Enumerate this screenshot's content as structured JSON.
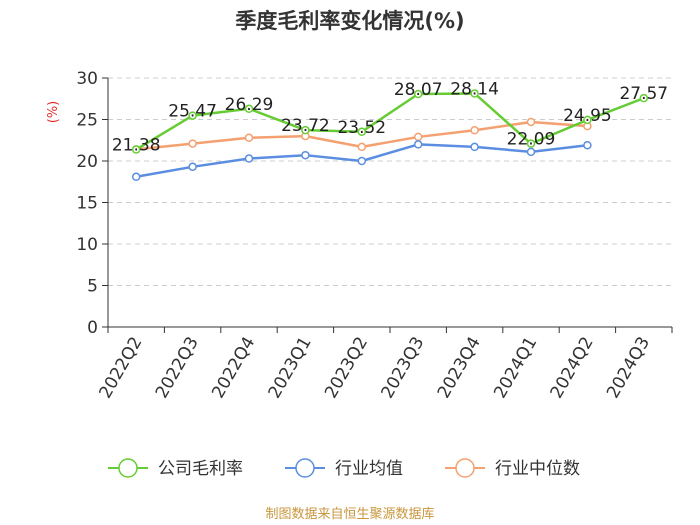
{
  "chart_data": {
    "type": "line",
    "title": "季度毛利率变化情况(%)",
    "ylabel": "(%)",
    "xlabel": "",
    "ylim": [
      0,
      30
    ],
    "yticks": [
      0,
      5,
      10,
      15,
      20,
      25,
      30
    ],
    "grid": true,
    "legend_position": "bottom",
    "categories": [
      "2022Q2",
      "2022Q3",
      "2022Q4",
      "2023Q1",
      "2023Q2",
      "2023Q3",
      "2023Q4",
      "2024Q1",
      "2024Q2",
      "2024Q3"
    ],
    "series": [
      {
        "name": "公司毛利率",
        "color": "#66cc33",
        "values": [
          21.38,
          25.47,
          26.29,
          23.72,
          23.52,
          28.07,
          28.14,
          22.09,
          24.95,
          27.57
        ],
        "data_labels": [
          "21.38",
          "25.47",
          "26.29",
          "23.72",
          "23.52",
          "28.07",
          "28.14",
          "22.09",
          "24.95",
          "27.57"
        ]
      },
      {
        "name": "行业均值",
        "color": "#5b8ee0",
        "values": [
          18.1,
          19.3,
          20.3,
          20.7,
          20.0,
          22.0,
          21.7,
          21.1,
          21.9,
          null
        ]
      },
      {
        "name": "行业中位数",
        "color": "#f4a070",
        "values": [
          21.4,
          22.1,
          22.8,
          23.0,
          21.7,
          22.9,
          23.7,
          24.7,
          24.2,
          null
        ]
      }
    ]
  },
  "source": "制图数据来自恒生聚源数据库"
}
